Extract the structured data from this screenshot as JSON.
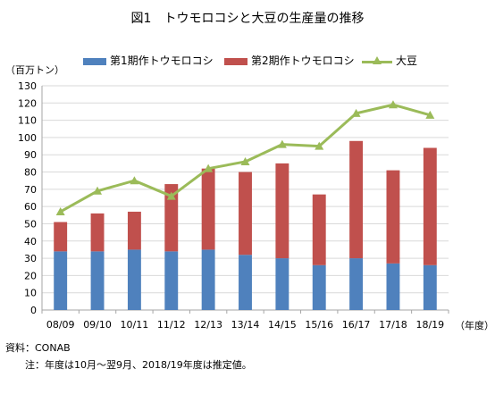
{
  "title": "図1　トウモロコシと大豆の生産量の推移",
  "unit_label": "（百万トン）",
  "x_unit_label": "（年度）",
  "source": "資料：CONAB",
  "note": "注：年度は10月～翌9月、2018/19年度は推定値。",
  "legend": {
    "first_crop": "第1期作トウモロコシ",
    "second_crop": "第2期作トウモロコシ",
    "soybean": "大豆"
  },
  "colors": {
    "first_crop": "#4f81bd",
    "second_crop": "#c0504d",
    "soybean": "#9bbb59",
    "grid": "#d9d9d9",
    "axis": "#a6a6a6"
  },
  "chart_data": {
    "type": "bar",
    "stacked": true,
    "categories": [
      "08/09",
      "09/10",
      "10/11",
      "11/12",
      "12/13",
      "13/14",
      "14/15",
      "15/16",
      "16/17",
      "17/18",
      "18/19"
    ],
    "series": [
      {
        "name": "第1期作トウモロコシ",
        "type": "bar",
        "values": [
          34,
          34,
          35,
          34,
          35,
          32,
          30,
          26,
          30,
          27,
          26
        ]
      },
      {
        "name": "第2期作トウモロコシ",
        "type": "bar",
        "values": [
          17,
          22,
          22,
          39,
          47,
          48,
          55,
          41,
          68,
          54,
          68
        ]
      },
      {
        "name": "大豆",
        "type": "line",
        "values": [
          57,
          69,
          75,
          66,
          82,
          86,
          96,
          95,
          114,
          119,
          113
        ]
      }
    ],
    "y_ticks": [
      0,
      10,
      20,
      30,
      40,
      50,
      60,
      70,
      80,
      90,
      100,
      110,
      120,
      130
    ],
    "ylim": [
      0,
      130
    ],
    "grid": true
  }
}
